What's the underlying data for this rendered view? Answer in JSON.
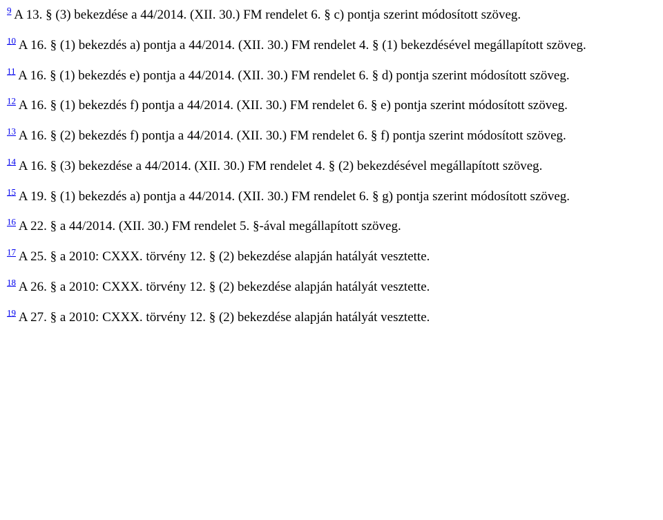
{
  "notes": [
    {
      "ref": "9",
      "text": " A 13. § (3) bekezdése a 44/2014. (XII. 30.) FM rendelet 6. § c) pontja szerint módosított szöveg."
    },
    {
      "ref": "10",
      "text": " A 16. § (1) bekezdés a) pontja a 44/2014. (XII. 30.) FM rendelet 4. § (1) bekezdésével megállapított szöveg."
    },
    {
      "ref": "11",
      "text": " A 16. § (1) bekezdés e) pontja a 44/2014. (XII. 30.) FM rendelet 6. § d) pontja szerint módosított szöveg."
    },
    {
      "ref": "12",
      "text": " A 16. § (1) bekezdés f) pontja a 44/2014. (XII. 30.) FM rendelet 6. § e) pontja szerint módosított szöveg."
    },
    {
      "ref": "13",
      "text": " A 16. § (2) bekezdés f) pontja a 44/2014. (XII. 30.) FM rendelet 6. § f) pontja szerint módosított szöveg."
    },
    {
      "ref": "14",
      "text": " A 16. § (3) bekezdése a 44/2014. (XII. 30.) FM rendelet 4. § (2) bekezdésével megállapított szöveg."
    },
    {
      "ref": "15",
      "text": " A 19. § (1) bekezdés a) pontja a 44/2014. (XII. 30.) FM rendelet 6. § g) pontja szerint módosított szöveg."
    },
    {
      "ref": "16",
      "text": " A 22. § a 44/2014. (XII. 30.) FM rendelet 5. §-ával megállapított szöveg."
    },
    {
      "ref": "17",
      "text": " A 25. § a 2010: CXXX. törvény 12. § (2) bekezdése alapján hatályát vesztette."
    },
    {
      "ref": "18",
      "text": " A 26. § a 2010: CXXX. törvény 12. § (2) bekezdése alapján hatályát vesztette."
    },
    {
      "ref": "19",
      "text": " A 27. § a 2010: CXXX. törvény 12. § (2) bekezdése alapján hatályát vesztette."
    }
  ]
}
